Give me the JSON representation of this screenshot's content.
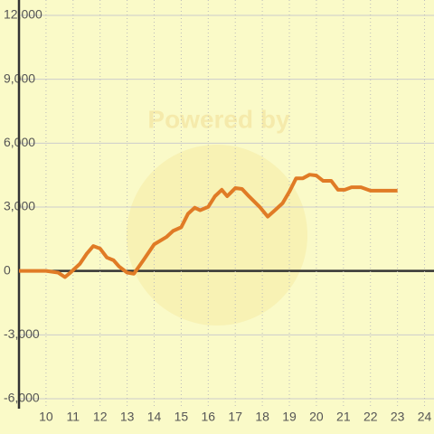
{
  "chart_data": {
    "type": "line",
    "watermark": "Powered by",
    "x": [
      9.0,
      10.0,
      10.45,
      10.7,
      10.9,
      11.25,
      11.5,
      11.75,
      12.0,
      12.25,
      12.5,
      12.7,
      13.0,
      13.25,
      13.6,
      14.0,
      14.45,
      14.7,
      15.0,
      15.25,
      15.5,
      15.7,
      16.0,
      16.25,
      16.5,
      16.7,
      17.0,
      17.25,
      17.5,
      17.9,
      18.2,
      18.5,
      18.75,
      19.0,
      19.25,
      19.5,
      19.75,
      20.0,
      20.25,
      20.55,
      20.8,
      21.05,
      21.3,
      21.65,
      22.0,
      23.0
    ],
    "values": [
      0,
      0,
      -80,
      -290,
      -80,
      330,
      800,
      1170,
      1050,
      630,
      500,
      210,
      -80,
      -130,
      500,
      1250,
      1590,
      1880,
      2050,
      2680,
      2970,
      2850,
      3010,
      3510,
      3810,
      3510,
      3890,
      3850,
      3510,
      3010,
      2550,
      2890,
      3180,
      3720,
      4350,
      4350,
      4520,
      4480,
      4230,
      4230,
      3810,
      3810,
      3930,
      3930,
      3770,
      3770
    ],
    "color": "#e07b26",
    "xlim": [
      9,
      24.35
    ],
    "xticks": [
      10,
      11,
      12,
      13,
      14,
      15,
      16,
      17,
      18,
      19,
      20,
      21,
      22,
      23,
      24
    ],
    "ylim": [
      -6000,
      12000
    ],
    "yticks": [
      {
        "value": -6000,
        "label": "-6,000"
      },
      {
        "value": -3000,
        "label": "-3,000"
      },
      0,
      {
        "value": 3000,
        "label": "3,000"
      },
      {
        "value": 6000,
        "label": "6,000"
      },
      {
        "value": 9000,
        "label": "9,000"
      },
      {
        "value": 12000,
        "label": "12,000"
      }
    ],
    "grid": true
  }
}
